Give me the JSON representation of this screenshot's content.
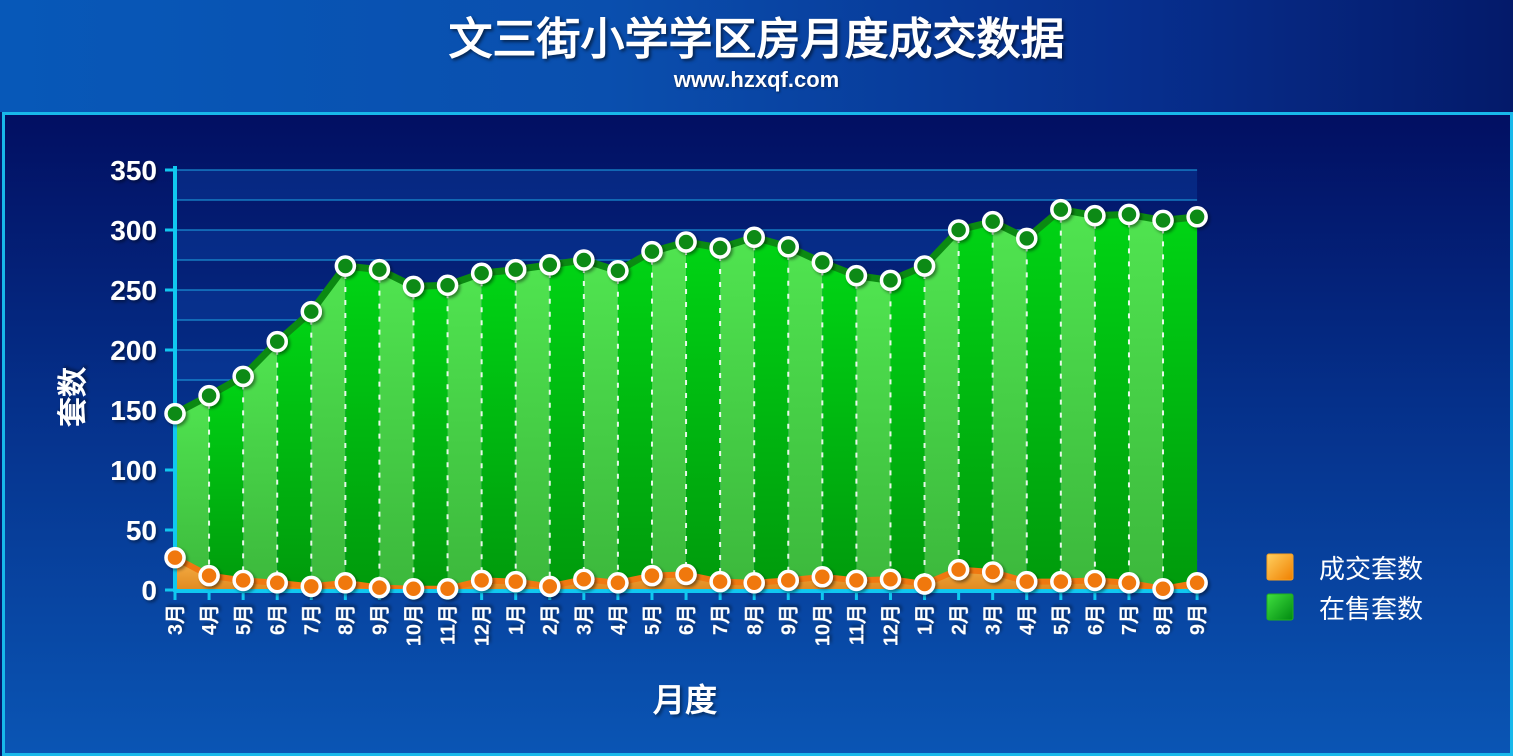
{
  "header": {
    "title": "文三街小学学区房月度成交数据",
    "subtitle": "www.hzxqf.com"
  },
  "colors": {
    "inventory_line": "#0b8a12",
    "inventory_fill_light": "#4fe04f",
    "inventory_fill_dark": "#00c010",
    "deals_line": "#f07810",
    "deals_fill": "#f0a838",
    "grid": "#1ea0e0",
    "axis": "#10c8f0"
  },
  "chart_data": {
    "type": "area",
    "xlabel": "月度",
    "ylabel": "套数",
    "ylim": [
      0,
      350
    ],
    "yticks": [
      0,
      50,
      100,
      150,
      200,
      250,
      300,
      350
    ],
    "categories": [
      "3月",
      "4月",
      "5月",
      "6月",
      "7月",
      "8月",
      "9月",
      "10月",
      "11月",
      "12月",
      "1月",
      "2月",
      "3月",
      "4月",
      "5月",
      "6月",
      "7月",
      "8月",
      "9月",
      "10月",
      "11月",
      "12月",
      "1月",
      "2月",
      "3月",
      "4月",
      "5月",
      "6月",
      "7月",
      "8月",
      "9月"
    ],
    "series": [
      {
        "name": "成交套数",
        "color": "#f07810",
        "values": [
          27,
          12,
          8,
          6,
          3,
          6,
          2,
          1,
          1,
          8,
          7,
          3,
          9,
          6,
          12,
          13,
          7,
          6,
          8,
          11,
          8,
          9,
          5,
          17,
          15,
          7,
          7,
          8,
          6,
          1,
          6
        ]
      },
      {
        "name": "在售套数",
        "color": "#0b8a12",
        "values": [
          147,
          162,
          178,
          207,
          232,
          270,
          267,
          253,
          254,
          264,
          267,
          271,
          275,
          266,
          282,
          290,
          285,
          294,
          286,
          273,
          262,
          258,
          270,
          300,
          307,
          293,
          317,
          312,
          313,
          308,
          311
        ]
      }
    ],
    "legend_position": "right",
    "grid": true
  }
}
